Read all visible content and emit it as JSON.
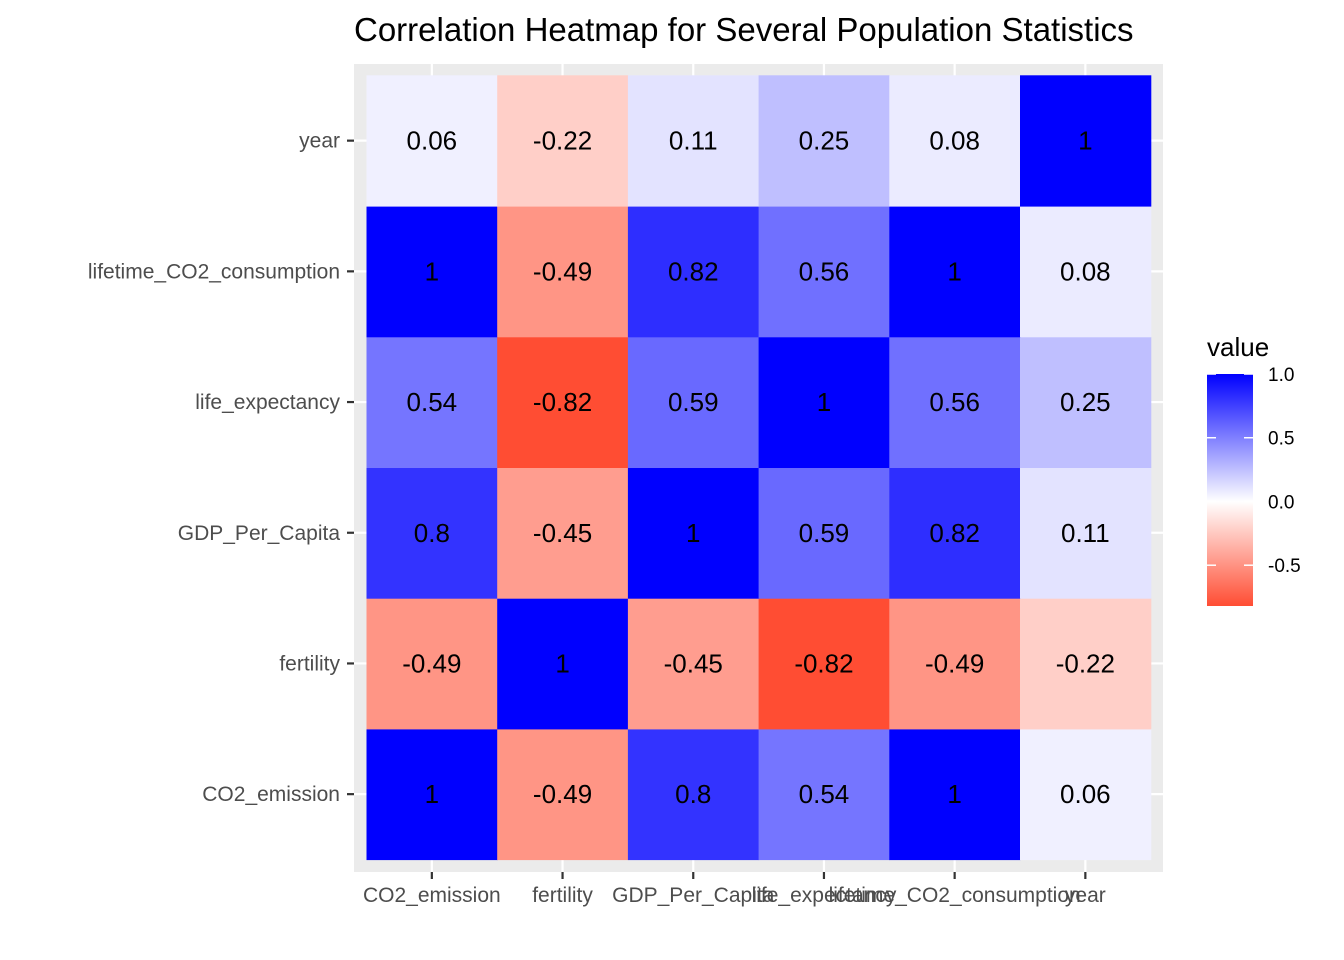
{
  "chart_data": {
    "type": "heatmap",
    "title": "Correlation Heatmap for Several Population Statistics",
    "xlabel": "",
    "ylabel": "",
    "x_categories": [
      "CO2_emission",
      "fertility",
      "GDP_Per_Capita",
      "life_expectancy",
      "lifetime_CO2_consumption",
      "year"
    ],
    "y_categories": [
      "CO2_emission",
      "fertility",
      "GDP_Per_Capita",
      "life_expectancy",
      "lifetime_CO2_consumption",
      "year"
    ],
    "values": [
      [
        1,
        -0.49,
        0.8,
        0.54,
        1,
        0.06
      ],
      [
        -0.49,
        1,
        -0.45,
        -0.82,
        -0.49,
        -0.22
      ],
      [
        0.8,
        -0.45,
        1,
        0.59,
        0.82,
        0.11
      ],
      [
        0.54,
        -0.82,
        0.59,
        1,
        0.56,
        0.25
      ],
      [
        1,
        -0.49,
        0.82,
        0.56,
        1,
        0.08
      ],
      [
        0.06,
        -0.22,
        0.11,
        0.25,
        0.08,
        1
      ]
    ],
    "legend": {
      "title": "value",
      "ticks": [
        "1.0",
        "0.5",
        "0.0",
        "-0.5"
      ],
      "tick_values": [
        1.0,
        0.5,
        0.0,
        -0.5
      ],
      "range": [
        -0.82,
        1.0
      ],
      "placement": "right"
    },
    "colors": {
      "low": "#ff4d33",
      "mid": "#ffffff",
      "high": "#0000ff",
      "panel_background": "#ebebeb",
      "grid": "#ffffff"
    }
  }
}
